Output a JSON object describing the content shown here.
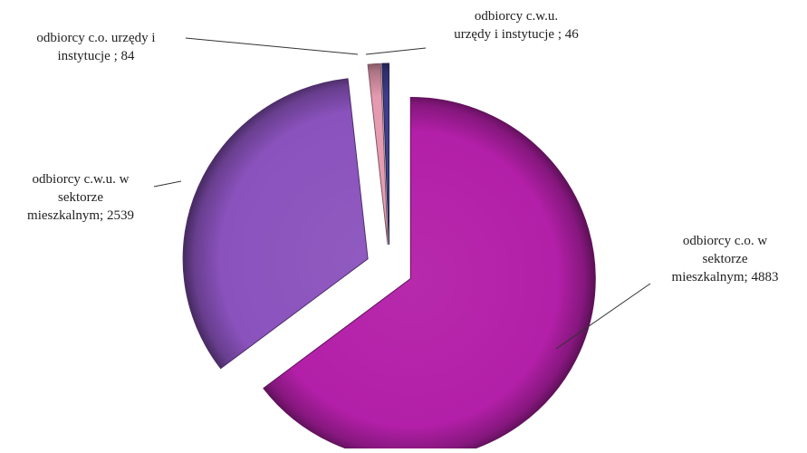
{
  "chart_data": {
    "type": "pie",
    "title": "",
    "slices": [
      {
        "label": "odbiorcy  c.o. w sektorze mieszkalnym; 4883",
        "category": "odbiorcy c.o. w sektorze mieszkalnym",
        "value": 4883,
        "color": "#b31fa8"
      },
      {
        "label": "odbiorcy  c.w.u. w sektorze mieszkalnym; 2539",
        "category": "odbiorcy c.w.u. w sektorze mieszkalnym",
        "value": 2539,
        "color": "#8a52bd"
      },
      {
        "label": "odbiorcy  c.o. urzędy i instytucje ; 84",
        "category": "odbiorcy c.o. urzędy i instytucje",
        "value": 84,
        "color": "#e59ab0"
      },
      {
        "label": "odbiorcy  c.w.u. urzędy i instytucje ; 46",
        "category": "odbiorcy c.w.u. urzędy i instytucje",
        "value": 46,
        "color": "#3d3d8c"
      }
    ],
    "exploded": true,
    "legend": "none"
  },
  "labels": {
    "slice_0": "odbiorcy  c.o. w\nsektorze\nmieszkalnym; 4883",
    "slice_1": "odbiorcy  c.w.u. w\nsektorze\nmieszkalnym; 2539",
    "slice_2": "odbiorcy  c.o. urzędy i\ninstytucje ; 84",
    "slice_3": "odbiorcy  c.w.u.\nurzędy i instytucje ; 46"
  }
}
